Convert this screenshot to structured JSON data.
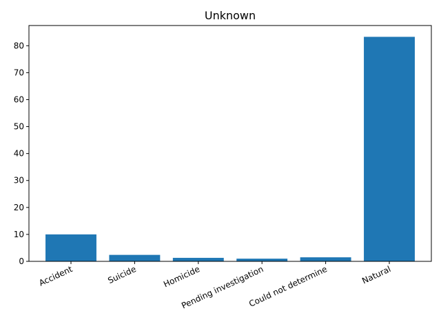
{
  "chart_data": {
    "type": "bar",
    "title": "Unknown",
    "xlabel": "",
    "ylabel": "",
    "categories": [
      "Accident",
      "Suicide",
      "Homicide",
      "Pending investigation",
      "Could not determine",
      "Natural"
    ],
    "values": [
      10.0,
      2.4,
      1.3,
      1.0,
      1.5,
      83.3
    ],
    "ylim": [
      0,
      87.5
    ],
    "yticks": [
      0,
      10,
      20,
      30,
      40,
      50,
      60,
      70,
      80
    ],
    "bar_color": "#1f77b4",
    "grid": false,
    "legend": "none"
  }
}
